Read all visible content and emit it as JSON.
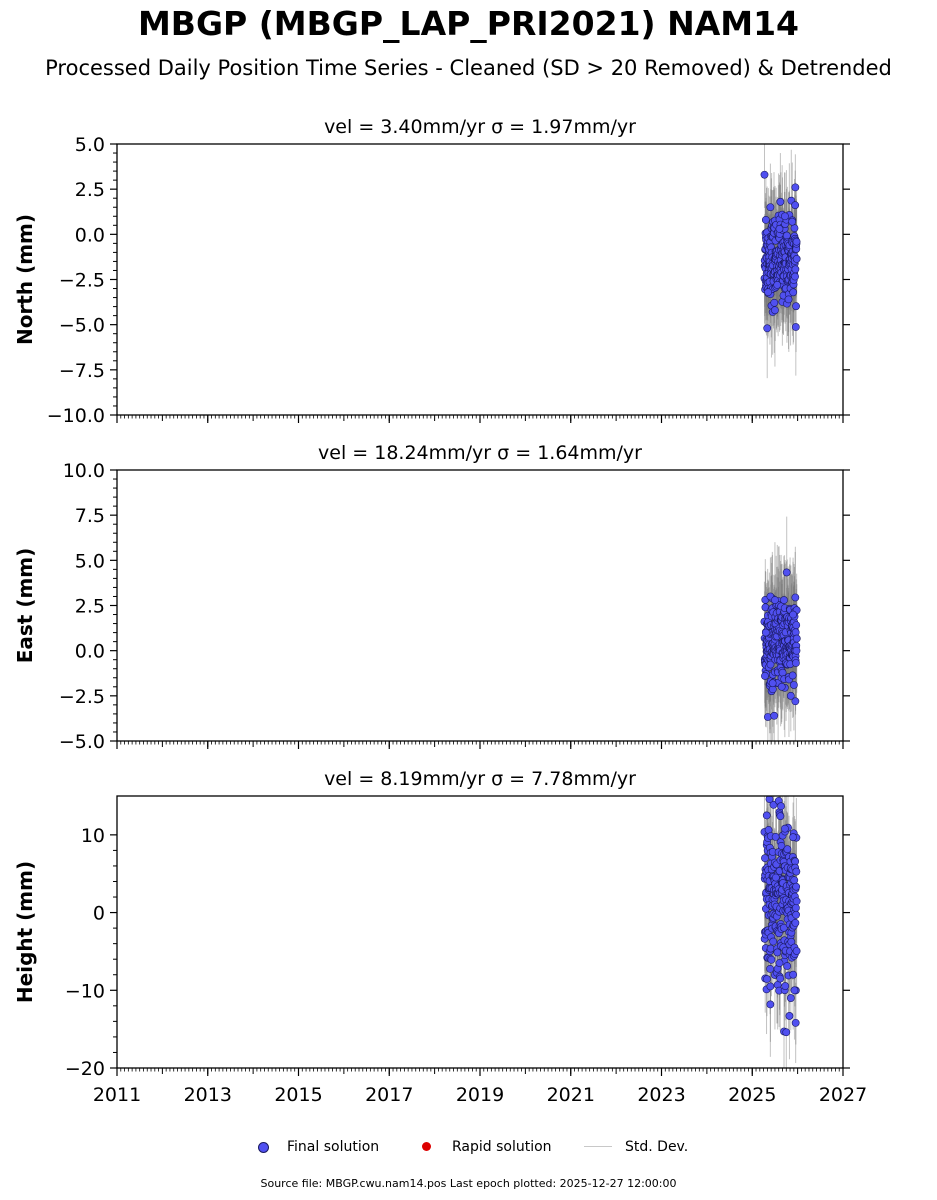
{
  "title": "MBGP (MBGP_LAP_PRI2021) NAM14",
  "subtitle": "Processed Daily Position Time Series - Cleaned (SD > 20 Removed) & Detrended",
  "legend": {
    "final": "Final solution",
    "rapid": "Rapid solution",
    "stddev": "Std. Dev."
  },
  "footer": "Source file: MBGP.cwu.nam14.pos  Last epoch plotted: 2025-12-27 12:00:00",
  "colors": {
    "final_fill": "#5050f0",
    "final_edge": "#1a1a60",
    "rapid": "#dd0000",
    "stddev": "#c8c8c8",
    "errbar": "#777777"
  },
  "chart_data": [
    {
      "type": "scatter",
      "panel": "north",
      "title": "vel = 3.40mm/yr   σ = 1.97mm/yr",
      "ylabel": "North (mm)",
      "xlim": [
        2011,
        2027
      ],
      "ylim": [
        -10,
        5
      ],
      "yticks": [
        5.0,
        2.5,
        0.0,
        -2.5,
        -5.0,
        -7.5,
        -10.0
      ],
      "ytick_labels": [
        "5.0",
        "2.5",
        "0.0",
        "−2.5",
        "−5.0",
        "−7.5",
        "−10.0"
      ],
      "xticks": [
        2011,
        2013,
        2015,
        2017,
        2019,
        2021,
        2023,
        2025,
        2027
      ],
      "xtick_labels": [],
      "epoch_range": [
        2025.27,
        2025.98
      ],
      "points": [
        [
          2025.27,
          3.3
        ],
        [
          2025.3,
          0.8
        ],
        [
          2025.33,
          -5.2
        ],
        [
          2025.4,
          1.5
        ],
        [
          2025.45,
          -4.3
        ],
        [
          2025.5,
          -4.2
        ],
        [
          2025.62,
          1.8
        ],
        [
          2025.72,
          1.0
        ],
        [
          2025.8,
          -3.6
        ],
        [
          2025.95,
          2.6
        ],
        [
          2025.88,
          0.7
        ],
        [
          2025.55,
          -2.8
        ],
        [
          2025.6,
          0.3
        ],
        [
          2025.35,
          -3.2
        ]
      ],
      "trend_mean": -1.3,
      "trend_sd": 1.1,
      "errbar": 2.5
    },
    {
      "type": "scatter",
      "panel": "east",
      "title": "vel = 18.24mm/yr   σ = 1.64mm/yr",
      "ylabel": "East (mm)",
      "xlim": [
        2011,
        2027
      ],
      "ylim": [
        -5,
        10
      ],
      "yticks": [
        10.0,
        7.5,
        5.0,
        2.5,
        0.0,
        -2.5,
        -5.0
      ],
      "ytick_labels": [
        "10.0",
        "7.5",
        "5.0",
        "2.5",
        "0.0",
        "−2.5",
        "−5.0"
      ],
      "xticks": [
        2011,
        2013,
        2015,
        2017,
        2019,
        2021,
        2023,
        2025,
        2027
      ],
      "xtick_labels": [],
      "epoch_range": [
        2025.27,
        2025.98
      ],
      "points": [
        [
          2025.28,
          -1.4
        ],
        [
          2025.3,
          1.0
        ],
        [
          2025.4,
          3.0
        ],
        [
          2025.5,
          2.8
        ],
        [
          2025.7,
          2.8
        ],
        [
          2025.9,
          2.0
        ],
        [
          2025.95,
          -2.8
        ],
        [
          2025.85,
          -2.5
        ],
        [
          2025.65,
          -2.0
        ],
        [
          2025.45,
          -1.8
        ]
      ],
      "trend_mean": 0.4,
      "trend_sd": 1.2,
      "errbar": 2.6
    },
    {
      "type": "scatter",
      "panel": "height",
      "title": "vel = 8.19mm/yr   σ = 7.78mm/yr",
      "ylabel": "Height (mm)",
      "xlim": [
        2011,
        2027
      ],
      "ylim": [
        -20,
        15
      ],
      "yticks": [
        10,
        0,
        -10,
        -20
      ],
      "ytick_labels": [
        "10",
        "0",
        "−10",
        "−20"
      ],
      "xticks": [
        2011,
        2013,
        2015,
        2017,
        2019,
        2021,
        2023,
        2025,
        2027
      ],
      "xtick_labels": [
        "2011",
        "2013",
        "2015",
        "2017",
        "2019",
        "2021",
        "2023",
        "2025",
        "2027"
      ],
      "epoch_range": [
        2025.27,
        2025.98
      ],
      "points": [
        [
          2025.38,
          14.6
        ],
        [
          2025.32,
          12.5
        ],
        [
          2025.62,
          12.4
        ],
        [
          2025.72,
          10.8
        ],
        [
          2025.9,
          9.7
        ],
        [
          2025.4,
          -9.5
        ],
        [
          2025.7,
          -15.3
        ],
        [
          2025.75,
          -15.4
        ],
        [
          2025.82,
          -13.3
        ],
        [
          2025.93,
          -10.0
        ],
        [
          2025.85,
          -11.0
        ],
        [
          2025.28,
          7.0
        ],
        [
          2025.52,
          4.5
        ],
        [
          2025.6,
          -6.5
        ]
      ],
      "trend_mean": 1.5,
      "trend_sd": 5.5,
      "errbar": 5.5
    }
  ]
}
